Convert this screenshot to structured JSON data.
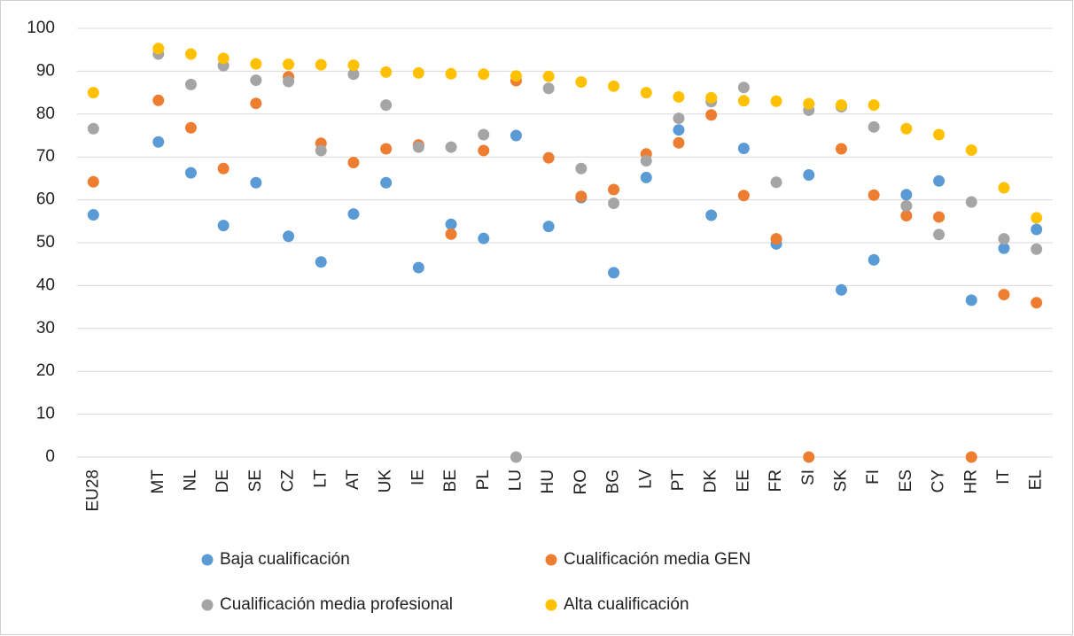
{
  "chart_data": {
    "type": "scatter",
    "categories": [
      "EU28",
      null,
      "MT",
      "NL",
      "DE",
      "SE",
      "CZ",
      "LT",
      "AT",
      "UK",
      "IE",
      "BE",
      "PL",
      "LU",
      "HU",
      "RO",
      "BG",
      "LV",
      "PT",
      "DK",
      "EE",
      "FR",
      "SI",
      "SK",
      "FI",
      "ES",
      "CY",
      "HR",
      "IT",
      "EL"
    ],
    "series": [
      {
        "name": "Baja cualificación",
        "color": "#5b9bd5",
        "values": [
          56.5,
          null,
          73.5,
          66.3,
          54,
          64,
          51.5,
          45.5,
          56.7,
          64,
          44.2,
          54.3,
          51,
          75,
          53.8,
          60.5,
          43,
          65.2,
          76.3,
          56.4,
          72,
          49.7,
          65.8,
          39,
          46,
          61.2,
          64.4,
          36.6,
          48.7,
          53.1
        ]
      },
      {
        "name": "Cualificación media GEN",
        "color": "#ed7d31",
        "values": [
          64.2,
          null,
          83.2,
          76.8,
          67.3,
          82.5,
          88.7,
          73.2,
          68.7,
          71.9,
          72.8,
          52,
          71.5,
          87.8,
          69.8,
          60.8,
          62.4,
          70.7,
          73.3,
          79.8,
          61,
          50.9,
          0,
          71.9,
          61.1,
          56.3,
          56,
          0,
          37.9,
          36
        ]
      },
      {
        "name": "Cualificación media profesional",
        "color": "#a5a5a5",
        "values": [
          76.6,
          null,
          94,
          86.9,
          91.3,
          87.9,
          87.6,
          71.5,
          89.3,
          82.1,
          72.3,
          72.3,
          75.2,
          0,
          86,
          67.3,
          59.2,
          69.1,
          79,
          82.9,
          86.2,
          64.1,
          80.9,
          81.7,
          77,
          58.6,
          51.9,
          59.5,
          50.9,
          48.5
        ]
      },
      {
        "name": "Alta cualificación",
        "color": "#ffc000",
        "values": [
          85,
          null,
          95.3,
          94,
          93,
          91.7,
          91.6,
          91.5,
          91.4,
          89.8,
          89.6,
          89.4,
          89.3,
          88.9,
          88.8,
          87.5,
          86.5,
          85,
          84,
          83.8,
          83.1,
          83,
          82.4,
          82.1,
          82.1,
          76.6,
          75.2,
          71.6,
          62.8,
          55.8
        ]
      }
    ],
    "ylim": [
      0,
      100
    ],
    "yticks": [
      0,
      10,
      20,
      30,
      40,
      50,
      60,
      70,
      80,
      90,
      100
    ],
    "grid": true,
    "legend": "bottom"
  }
}
